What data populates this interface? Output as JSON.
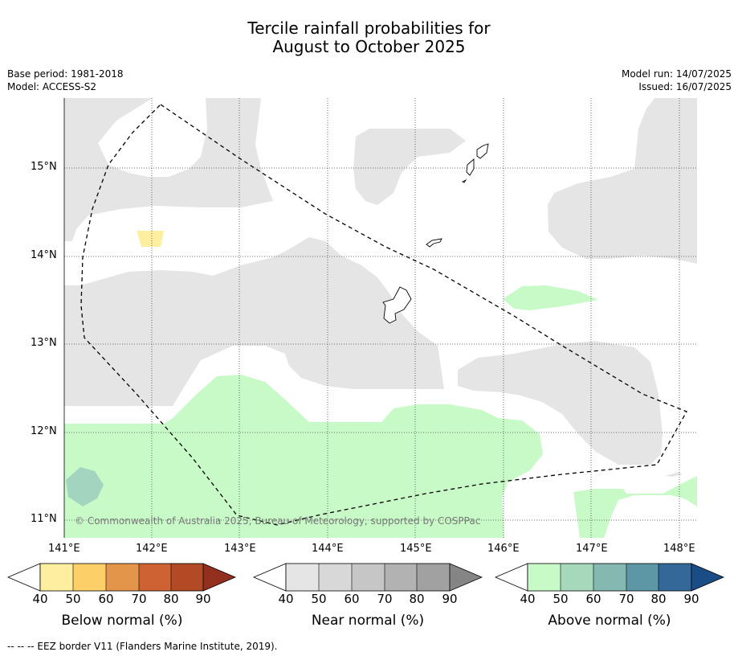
{
  "title": {
    "line1": "Tercile rainfall probabilities for",
    "line2": "August to October 2025"
  },
  "meta_left": {
    "base_period": "Base period: 1981-2018",
    "model": "Model: ACCESS-S2"
  },
  "meta_right": {
    "model_run": "Model run: 14/07/2025",
    "issued": "Issued: 16/07/2025"
  },
  "map": {
    "lat_labels": [
      "15°N",
      "14°N",
      "13°N",
      "12°N",
      "11°N"
    ],
    "lon_labels": [
      "141°E",
      "142°E",
      "143°E",
      "144°E",
      "145°E",
      "146°E",
      "147°E",
      "148°E"
    ],
    "copyright": "© Commonwealth of Australia 2025, Bureau of Meteorology, supported by COSPPac",
    "colors": {
      "near_normal_40": "#e5e5e5",
      "below_normal_40": "#fdeea0",
      "above_normal_40": "#c8fac8",
      "above_normal_50": "#a3d4c0"
    }
  },
  "colorbars": [
    {
      "label": "Below normal (%)",
      "ticks": [
        "40",
        "50",
        "60",
        "70",
        "80",
        "90"
      ],
      "colors": [
        "#fdeea0",
        "#fdcf68",
        "#e3954a",
        "#cf6232",
        "#b24a26",
        "#922f1e"
      ]
    },
    {
      "label": "Near normal (%)",
      "ticks": [
        "40",
        "50",
        "60",
        "70",
        "80",
        "90"
      ],
      "colors": [
        "#e5e5e5",
        "#d8d8d8",
        "#c6c6c6",
        "#b2b2b2",
        "#a1a1a1",
        "#858585"
      ]
    },
    {
      "label": "Above normal (%)",
      "ticks": [
        "40",
        "50",
        "60",
        "70",
        "80",
        "90"
      ],
      "colors": [
        "#c8fac8",
        "#a6d8bc",
        "#84b8b0",
        "#5d96a4",
        "#346898",
        "#1a4c86"
      ]
    }
  ],
  "footer": "--  --  -- EEZ border V11 (Flanders Marine Institute, 2019)."
}
